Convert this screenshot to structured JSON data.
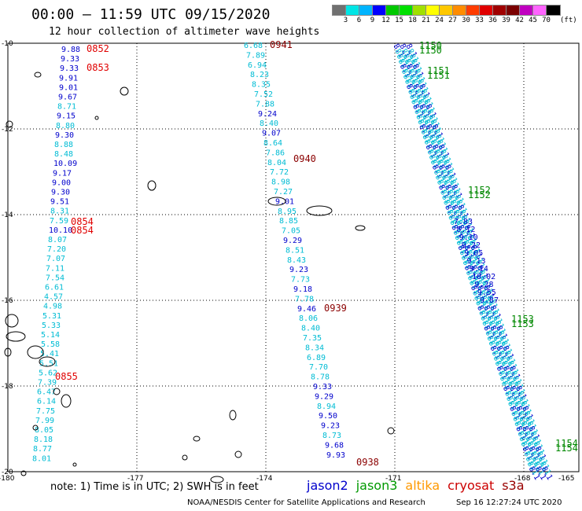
{
  "header": {
    "title": "00:00 – 11:59 UTC 09/15/2020",
    "subtitle": "12 hour collection of altimeter wave heights"
  },
  "colorbar": {
    "unit": "(ft)",
    "colors": [
      "#707070",
      "#00e5e5",
      "#00b4ff",
      "#0000ff",
      "#00c800",
      "#00e000",
      "#a0e000",
      "#ffff00",
      "#ffc800",
      "#ff8c00",
      "#ff3c00",
      "#e00000",
      "#a00000",
      "#7a0000",
      "#c000c0",
      "#ff64ff",
      "#000000"
    ],
    "ticks": [
      "3",
      "6",
      "9",
      "12",
      "15",
      "18",
      "21",
      "24",
      "27",
      "30",
      "33",
      "36",
      "39",
      "42",
      "45",
      "70"
    ]
  },
  "axes": {
    "lon_labels": [
      "-180",
      "-177",
      "-174",
      "-171",
      "-168",
      "-165"
    ],
    "lat_labels": [
      "-10",
      "-12",
      "-14",
      "-16",
      "-18",
      "-20"
    ],
    "lat_range": [
      -20,
      -10
    ],
    "lon_range": [
      -180,
      -165
    ]
  },
  "tracks": [
    {
      "sat": "jason2",
      "color_key": "cyan",
      "values": [
        "9.88",
        "9.33",
        "9.33",
        "9.91",
        "9.01",
        "9.67",
        "8.71",
        "9.15",
        "8.80",
        "9.30",
        "8.88",
        "8.48",
        "10.09",
        "9.17",
        "9.00",
        "9.30",
        "9.51",
        "8.31",
        "7.59",
        "10.10",
        "8.07",
        "7.20",
        "7.07",
        "7.11",
        "7.54",
        "6.61",
        "4.57",
        "4.98",
        "5.31",
        "5.33",
        "5.14",
        "5.58",
        "5.41",
        "5.51",
        "5.62",
        "7.39",
        "6.47",
        "6.14",
        "7.75",
        "7.99",
        "8.05",
        "8.18",
        "8.77",
        "8.01"
      ],
      "times": [
        "0852",
        "0853",
        "0854",
        "0854",
        "0855"
      ]
    },
    {
      "sat": "jason2",
      "color_key": "mid",
      "values": [
        "6.68",
        "7.89",
        "6.94",
        "8.23",
        "8.35",
        "7.52",
        "7.88",
        "9.24",
        "8.40",
        "9.07",
        "8.64",
        "7.86",
        "8.04",
        "7.72",
        "8.98",
        "7.27",
        "9.01",
        "8.95",
        "8.85",
        "7.05",
        "9.29",
        "8.51",
        "8.43",
        "9.23",
        "7.73",
        "9.18",
        "7.78",
        "9.46",
        "8.06",
        "8.40",
        "7.35",
        "8.34",
        "6.89",
        "7.70",
        "8.78",
        "9.33",
        "9.29",
        "8.94",
        "9.50",
        "9.23",
        "8.73",
        "9.68",
        "9.93"
      ],
      "times": [
        "0941",
        "0940",
        "0939",
        "0938"
      ]
    }
  ],
  "diag_times": [
    "1150",
    "1151",
    "1152",
    "1153",
    "1154"
  ],
  "diag_values": [
    "7.83",
    "8.12",
    "9.10",
    "9.22",
    "9.05",
    "9.13",
    "9.14",
    "10.02",
    "9.28",
    "9.55",
    "9.87"
  ],
  "footer": {
    "note": "note: 1) Time is in UTC; 2) SWH is in feet",
    "sats": [
      "jason2",
      "jason3",
      "altika",
      "cryosat",
      "s3a"
    ],
    "sat_colors": [
      "#0000cc",
      "#009900",
      "#ff9900",
      "#cc0000",
      "#990000"
    ],
    "credit": "NOAA/NESDIS Center for Satellite Applications and Research",
    "stamp": "Sep 16 12:27:24 UTC 2020"
  }
}
